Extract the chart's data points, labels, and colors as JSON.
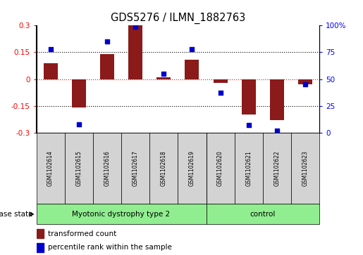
{
  "title": "GDS5276 / ILMN_1882763",
  "samples": [
    "GSM1102614",
    "GSM1102615",
    "GSM1102616",
    "GSM1102617",
    "GSM1102618",
    "GSM1102619",
    "GSM1102620",
    "GSM1102621",
    "GSM1102622",
    "GSM1102623"
  ],
  "bar_values": [
    0.09,
    -0.16,
    0.14,
    0.3,
    0.01,
    0.11,
    -0.02,
    -0.2,
    -0.23,
    -0.03
  ],
  "percentile_values": [
    78,
    8,
    85,
    99,
    55,
    78,
    37,
    7,
    2,
    45
  ],
  "groups": [
    {
      "label": "Myotonic dystrophy type 2",
      "start": 0,
      "end": 6,
      "color": "#90EE90"
    },
    {
      "label": "control",
      "start": 6,
      "end": 10,
      "color": "#90EE90"
    }
  ],
  "bar_color": "#8B1A1A",
  "scatter_color": "#0000CD",
  "ylim_left": [
    -0.3,
    0.3
  ],
  "ylim_right": [
    0,
    100
  ],
  "yticks_left": [
    -0.3,
    -0.15,
    0,
    0.15,
    0.3
  ],
  "yticks_right": [
    0,
    25,
    50,
    75,
    100
  ],
  "ytick_labels_left": [
    "-0.3",
    "-0.15",
    "0",
    "0.15",
    "0.3"
  ],
  "ytick_labels_right": [
    "0",
    "25",
    "50",
    "75",
    "100%"
  ],
  "disease_state_label": "disease state",
  "legend_bar_label": "transformed count",
  "legend_scatter_label": "percentile rank within the sample",
  "bar_width": 0.5,
  "group_bg_color": "#D3D3D3",
  "n_disease": 6,
  "n_control": 4
}
